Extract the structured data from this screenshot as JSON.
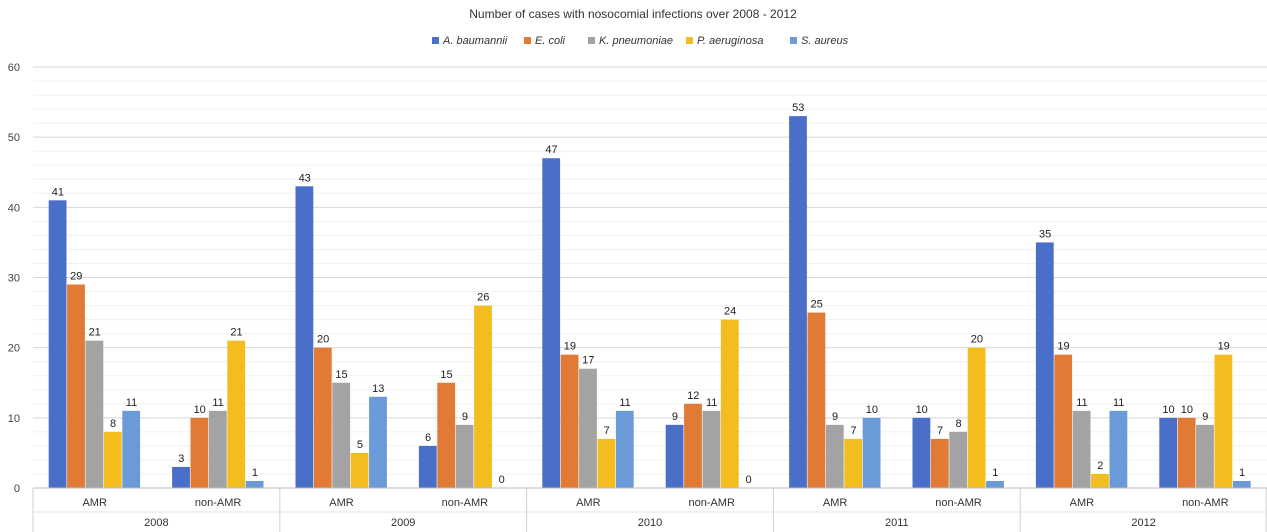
{
  "chart_data": {
    "type": "bar",
    "title": "Number of cases with nosocomial infections over 2008 - 2012",
    "xlabel": "",
    "ylabel": "",
    "ylim": [
      0,
      60
    ],
    "yticks": [
      0,
      10,
      20,
      30,
      40,
      50,
      60
    ],
    "grid": true,
    "legend_position": "top",
    "groups": [
      {
        "year": "2008",
        "categories": [
          "AMR",
          "non-AMR"
        ]
      },
      {
        "year": "2009",
        "categories": [
          "AMR",
          "non-AMR"
        ]
      },
      {
        "year": "2010",
        "categories": [
          "AMR",
          "non-AMR"
        ]
      },
      {
        "year": "2011",
        "categories": [
          "AMR",
          "non-AMR"
        ]
      },
      {
        "year": "2012",
        "categories": [
          "AMR",
          "non-AMR"
        ]
      }
    ],
    "series": [
      {
        "name": "A. baumannii",
        "color": "#4a6fc8",
        "values": [
          41,
          3,
          43,
          6,
          47,
          9,
          53,
          10,
          35,
          10
        ]
      },
      {
        "name": "E. coli",
        "color": "#e07a35",
        "values": [
          29,
          10,
          20,
          15,
          19,
          12,
          25,
          7,
          19,
          10
        ]
      },
      {
        "name": "K. pneumoniae",
        "color": "#a3a3a3",
        "values": [
          21,
          11,
          15,
          9,
          17,
          11,
          9,
          8,
          11,
          9
        ]
      },
      {
        "name": "P. aeruginosa",
        "color": "#f4bd1f",
        "values": [
          8,
          21,
          5,
          26,
          7,
          24,
          7,
          20,
          2,
          19
        ]
      },
      {
        "name": "S. aureus",
        "color": "#6a9bd8",
        "values": [
          11,
          1,
          13,
          0,
          11,
          0,
          10,
          1,
          11,
          1
        ]
      }
    ]
  }
}
